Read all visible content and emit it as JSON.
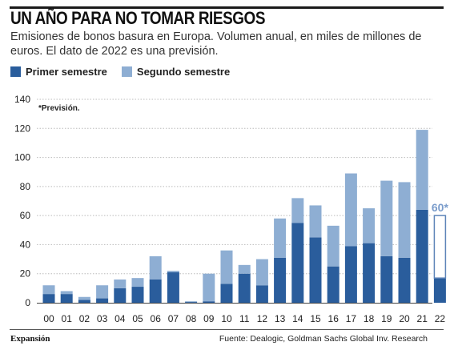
{
  "title": "UN AÑO PARA NO TOMAR RIESGOS",
  "subtitle": "Emisiones de bonos basura en Europa. Volumen anual, en miles de millones de euros. El dato de 2022 es una previsión.",
  "legend": {
    "first": "Primer semestre",
    "second": "Segundo semestre"
  },
  "note": "*Previsión.",
  "footer": {
    "brand": "Expansión",
    "source": "Fuente: Dealogic, Goldman Sachs Global Inv. Research"
  },
  "colors": {
    "first": "#2a5d9c",
    "second": "#8eaed3",
    "forecast_outline": "#5d84b8",
    "forecast_label": "#7a9ccb",
    "grid": "#bbbbbb"
  },
  "chart_data": {
    "type": "bar",
    "stacked": true,
    "categories": [
      "00",
      "01",
      "02",
      "03",
      "04",
      "05",
      "06",
      "07",
      "08",
      "09",
      "10",
      "11",
      "12",
      "13",
      "14",
      "15",
      "16",
      "17",
      "18",
      "19",
      "20",
      "21",
      "22"
    ],
    "series": [
      {
        "name": "Primer semestre",
        "values": [
          6,
          6,
          2,
          3,
          10,
          11,
          16,
          21,
          0.5,
          1,
          13,
          20,
          12,
          31,
          55,
          45,
          25,
          39,
          41,
          32,
          31,
          64,
          17
        ]
      },
      {
        "name": "Segundo semestre",
        "values": [
          6,
          2,
          2,
          9,
          6,
          6,
          16,
          1,
          0.5,
          19,
          23,
          6,
          18,
          27,
          17,
          22,
          28,
          50,
          24,
          52,
          52,
          55,
          0
        ]
      }
    ],
    "forecast": {
      "category": "22",
      "total": 60,
      "label": "60*"
    },
    "ylim": [
      0,
      140
    ],
    "yticks": [
      0,
      20,
      40,
      60,
      80,
      100,
      120,
      140
    ],
    "grid": true,
    "legend_position": "top-left"
  }
}
